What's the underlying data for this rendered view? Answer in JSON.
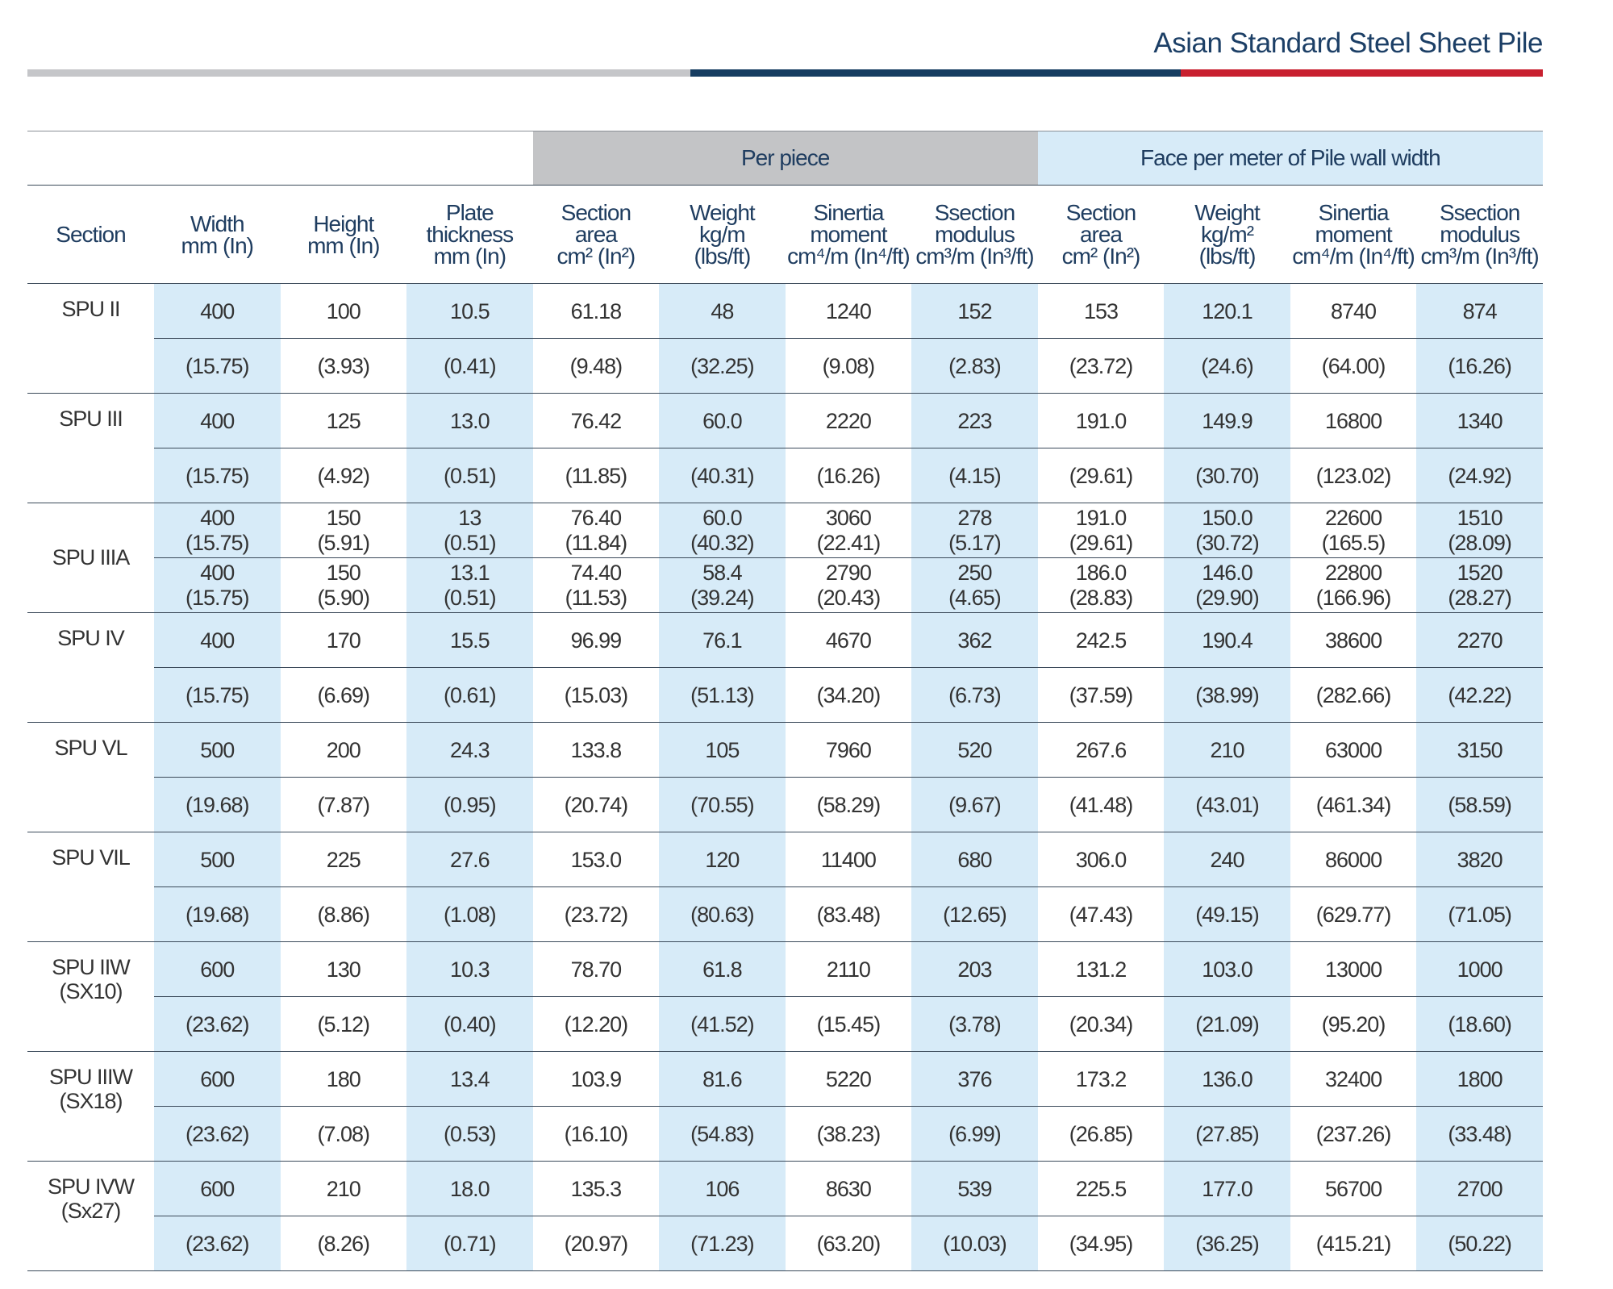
{
  "header": {
    "title": "Asian Standard Steel Sheet Pile"
  },
  "table": {
    "groups": [
      "Per piece",
      "Face per meter of Pile wall width"
    ],
    "columns": [
      [
        "Section"
      ],
      [
        "Width",
        "mm (In)"
      ],
      [
        "Height",
        "mm (In)"
      ],
      [
        "Plate",
        "thickness",
        "mm (In)"
      ],
      [
        "Section",
        "area",
        "cm² (In²)"
      ],
      [
        "Weight",
        "kg/m",
        "(lbs/ft)"
      ],
      [
        "Sinertia",
        "moment",
        "cm⁴/m (In⁴/ft)"
      ],
      [
        "Ssection",
        "modulus",
        "cm³/m (In³/ft)"
      ],
      [
        "Section",
        "area",
        "cm² (In²)"
      ],
      [
        "Weight",
        "kg/m²",
        "(lbs/ft)"
      ],
      [
        "Sinertia",
        "moment",
        "cm⁴/m (In⁴/ft)"
      ],
      [
        "Ssection",
        "modulus",
        "cm³/m (In³/ft)"
      ]
    ],
    "sections": [
      {
        "name": [
          "SPU II"
        ],
        "rows": [
          [
            "400",
            "100",
            "10.5",
            "61.18",
            "48",
            "1240",
            "152",
            "153",
            "120.1",
            "8740",
            "874"
          ],
          [
            "(15.75)",
            "(3.93)",
            "(0.41)",
            "(9.48)",
            "(32.25)",
            "(9.08)",
            "(2.83)",
            "(23.72)",
            "(24.6)",
            "(64.00)",
            "(16.26)"
          ]
        ]
      },
      {
        "name": [
          "SPU III"
        ],
        "rows": [
          [
            "400",
            "125",
            "13.0",
            "76.42",
            "60.0",
            "2220",
            "223",
            "191.0",
            "149.9",
            "16800",
            "1340"
          ],
          [
            "(15.75)",
            "(4.92)",
            "(0.51)",
            "(11.85)",
            "(40.31)",
            "(16.26)",
            "(4.15)",
            "(29.61)",
            "(30.70)",
            "(123.02)",
            "(24.92)"
          ]
        ]
      },
      {
        "name": [
          "SPU IIIA"
        ],
        "rows": [
          [
            [
              "400",
              "(15.75)"
            ],
            [
              "150",
              "(5.91)"
            ],
            [
              "13",
              "(0.51)"
            ],
            [
              "76.40",
              "(11.84)"
            ],
            [
              "60.0",
              "(40.32)"
            ],
            [
              "3060",
              "(22.41)"
            ],
            [
              "278",
              "(5.17)"
            ],
            [
              "191.0",
              "(29.61)"
            ],
            [
              "150.0",
              "(30.72)"
            ],
            [
              "22600",
              "(165.5)"
            ],
            [
              "1510",
              "(28.09)"
            ]
          ],
          [
            [
              "400",
              "(15.75)"
            ],
            [
              "150",
              "(5.90)"
            ],
            [
              "13.1",
              "(0.51)"
            ],
            [
              "74.40",
              "(11.53)"
            ],
            [
              "58.4",
              "(39.24)"
            ],
            [
              "2790",
              "(20.43)"
            ],
            [
              "250",
              "(4.65)"
            ],
            [
              "186.0",
              "(28.83)"
            ],
            [
              "146.0",
              "(29.90)"
            ],
            [
              "22800",
              "(166.96)"
            ],
            [
              "1520",
              "(28.27)"
            ]
          ]
        ]
      },
      {
        "name": [
          "SPU IV"
        ],
        "rows": [
          [
            "400",
            "170",
            "15.5",
            "96.99",
            "76.1",
            "4670",
            "362",
            "242.5",
            "190.4",
            "38600",
            "2270"
          ],
          [
            "(15.75)",
            "(6.69)",
            "(0.61)",
            "(15.03)",
            "(51.13)",
            "(34.20)",
            "(6.73)",
            "(37.59)",
            "(38.99)",
            "(282.66)",
            "(42.22)"
          ]
        ]
      },
      {
        "name": [
          "SPU VL"
        ],
        "rows": [
          [
            "500",
            "200",
            "24.3",
            "133.8",
            "105",
            "7960",
            "520",
            "267.6",
            "210",
            "63000",
            "3150"
          ],
          [
            "(19.68)",
            "(7.87)",
            "(0.95)",
            "(20.74)",
            "(70.55)",
            "(58.29)",
            "(9.67)",
            "(41.48)",
            "(43.01)",
            "(461.34)",
            "(58.59)"
          ]
        ]
      },
      {
        "name": [
          "SPU VIL"
        ],
        "rows": [
          [
            "500",
            "225",
            "27.6",
            "153.0",
            "120",
            "11400",
            "680",
            "306.0",
            "240",
            "86000",
            "3820"
          ],
          [
            "(19.68)",
            "(8.86)",
            "(1.08)",
            "(23.72)",
            "(80.63)",
            "(83.48)",
            "(12.65)",
            "(47.43)",
            "(49.15)",
            "(629.77)",
            "(71.05)"
          ]
        ]
      },
      {
        "name": [
          "SPU IIW",
          "(SX10)"
        ],
        "rows": [
          [
            "600",
            "130",
            "10.3",
            "78.70",
            "61.8",
            "2110",
            "203",
            "131.2",
            "103.0",
            "13000",
            "1000"
          ],
          [
            "(23.62)",
            "(5.12)",
            "(0.40)",
            "(12.20)",
            "(41.52)",
            "(15.45)",
            "(3.78)",
            "(20.34)",
            "(21.09)",
            "(95.20)",
            "(18.60)"
          ]
        ]
      },
      {
        "name": [
          "SPU IIIW",
          "(SX18)"
        ],
        "rows": [
          [
            "600",
            "180",
            "13.4",
            "103.9",
            "81.6",
            "5220",
            "376",
            "173.2",
            "136.0",
            "32400",
            "1800"
          ],
          [
            "(23.62)",
            "(7.08)",
            "(0.53)",
            "(16.10)",
            "(54.83)",
            "(38.23)",
            "(6.99)",
            "(26.85)",
            "(27.85)",
            "(237.26)",
            "(33.48)"
          ]
        ]
      },
      {
        "name": [
          "SPU IVW",
          "(Sx27)"
        ],
        "rows": [
          [
            "600",
            "210",
            "18.0",
            "135.3",
            "106",
            "8630",
            "539",
            "225.5",
            "177.0",
            "56700",
            "2700"
          ],
          [
            "(23.62)",
            "(8.26)",
            "(0.71)",
            "(20.97)",
            "(71.23)",
            "(63.20)",
            "(10.03)",
            "(34.95)",
            "(36.25)",
            "(415.21)",
            "(50.22)"
          ]
        ]
      }
    ]
  }
}
